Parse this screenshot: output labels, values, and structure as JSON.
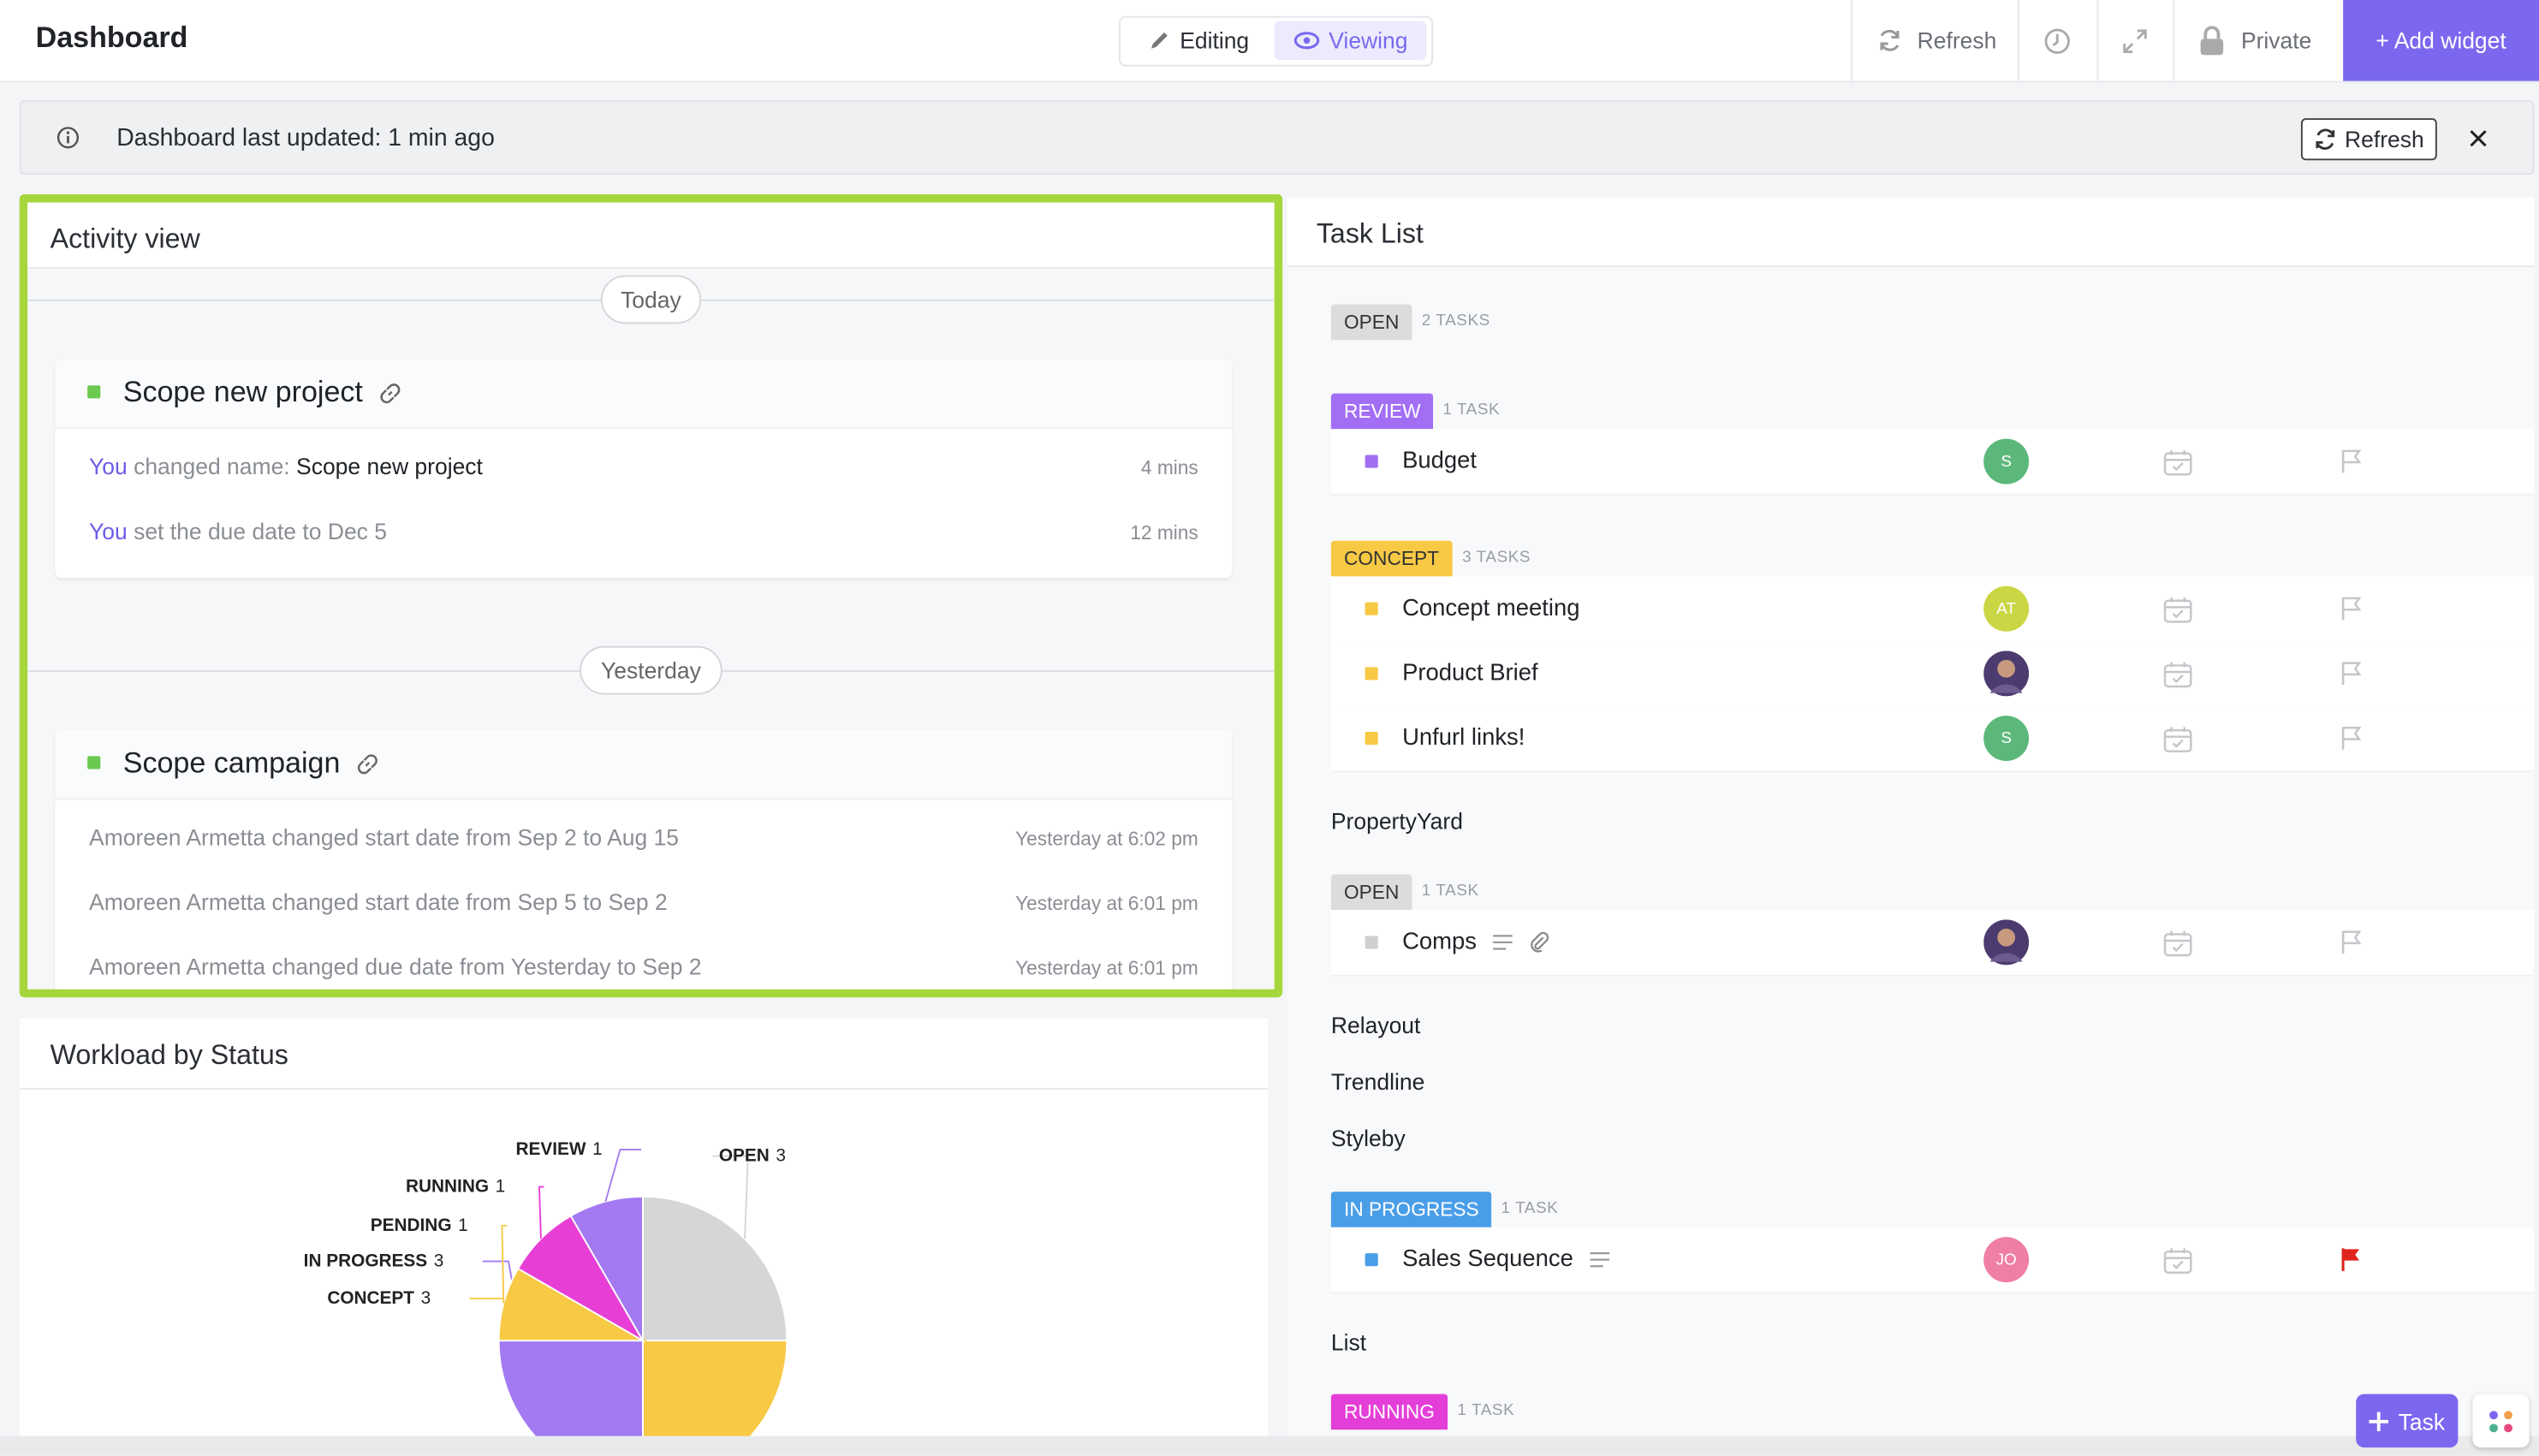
{
  "header": {
    "title": "Dashboard",
    "modes": [
      "Editing",
      "Viewing"
    ],
    "refresh": "Refresh",
    "privacy": "Private",
    "add_widget": "+ Add widget"
  },
  "banner": {
    "text": "Dashboard last updated: 1 min ago",
    "button": "Refresh"
  },
  "activity": {
    "title": "Activity view",
    "groups": [
      {
        "day": "Today",
        "cards": [
          {
            "title": "Scope new project",
            "entries": [
              {
                "actor": "You",
                "text": "changed name:",
                "target": "Scope new project",
                "time": "4 mins"
              },
              {
                "actor": "You",
                "text": "set the due date to Dec 5",
                "time": "12 mins"
              }
            ]
          }
        ]
      },
      {
        "day": "Yesterday",
        "cards": [
          {
            "title": "Scope campaign",
            "entries": [
              {
                "text": "Amoreen Armetta changed start date from Sep 2 to Aug 15",
                "time": "Yesterday at 6:02 pm"
              },
              {
                "text": "Amoreen Armetta changed start date from Sep 5 to Sep 2",
                "time": "Yesterday at 6:01 pm"
              },
              {
                "text": "Amoreen Armetta changed due date from Yesterday to Sep 2",
                "time": "Yesterday at 6:01 pm"
              }
            ]
          }
        ]
      }
    ]
  },
  "workload": {
    "title": "Workload by Status"
  },
  "chart_data": {
    "type": "pie",
    "categories": [
      "OPEN",
      "CONCEPT",
      "IN PROGRESS",
      "PENDING",
      "RUNNING",
      "REVIEW"
    ],
    "values": [
      3,
      3,
      3,
      1,
      1,
      1
    ],
    "colors": [
      "#d6d6d6",
      "#f7c945",
      "#a37af2",
      "#f7c945",
      "#e73fd6",
      "#a37af2"
    ]
  },
  "tasks": {
    "title": "Task List",
    "button": "Task",
    "sections": [
      {
        "status": "OPEN",
        "color": "#dcdcdc",
        "count": "2 TASKS",
        "tasks": []
      },
      {
        "status": "REVIEW",
        "color": "#a26ef4",
        "count": "1 TASK",
        "tasks": [
          {
            "name": "Budget",
            "avatar": "S",
            "avatar_color": "#5cb87a"
          }
        ]
      },
      {
        "status": "CONCEPT",
        "color": "#f7c945",
        "count": "3 TASKS",
        "tasks": [
          {
            "name": "Concept meeting",
            "avatar": "AT",
            "avatar_color": "#cbd645"
          },
          {
            "name": "Product Brief"
          },
          {
            "name": "Unfurl links!",
            "avatar": "S",
            "avatar_color": "#5cb87a"
          }
        ]
      },
      {
        "list": "PropertyYard"
      },
      {
        "status": "OPEN",
        "color": "#dcdcdc",
        "count": "1 TASK",
        "tasks": [
          {
            "name": "Comps",
            "description": true,
            "attachment": true
          }
        ]
      },
      {
        "list": "Relayout"
      },
      {
        "list": "Trendline"
      },
      {
        "list": "Styleby"
      },
      {
        "status": "IN PROGRESS",
        "color": "#4a9ee8",
        "count": "1 TASK",
        "tasks": [
          {
            "name": "Sales Sequence",
            "avatar": "JO",
            "avatar_color": "#ef7fa5",
            "description": true,
            "flagged": true
          }
        ]
      },
      {
        "list": "List"
      },
      {
        "status": "RUNNING",
        "color": "#e43ed8",
        "count": "1 TASK",
        "tasks": []
      }
    ]
  }
}
